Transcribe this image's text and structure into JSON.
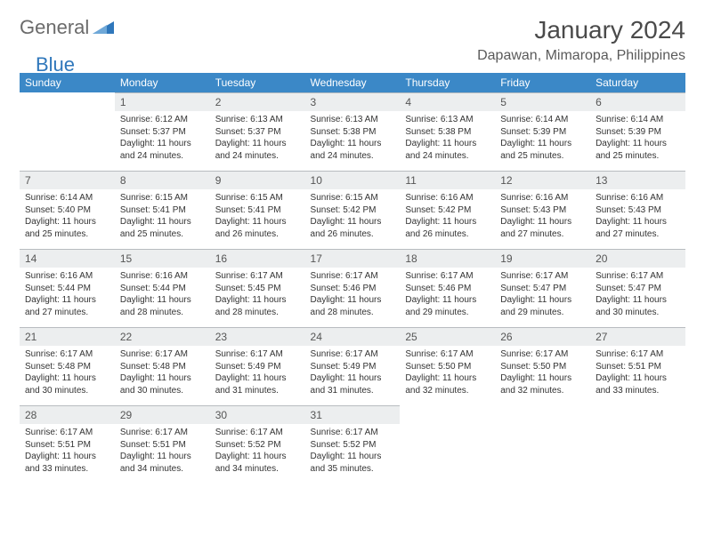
{
  "brand": {
    "part1": "General",
    "part2": "Blue"
  },
  "title": "January 2024",
  "location": "Dapawan, Mimaropa, Philippines",
  "colors": {
    "header_bg": "#3b88c7",
    "header_text": "#ffffff",
    "daynum_bg": "#eceeef",
    "daynum_border": "#b8bcc0",
    "body_text": "#333333",
    "logo_gray": "#6b6b6b",
    "logo_blue": "#2f77bb"
  },
  "day_headers": [
    "Sunday",
    "Monday",
    "Tuesday",
    "Wednesday",
    "Thursday",
    "Friday",
    "Saturday"
  ],
  "weeks": [
    [
      {
        "n": "",
        "sunrise": "",
        "sunset": "",
        "daylight": ""
      },
      {
        "n": "1",
        "sunrise": "Sunrise: 6:12 AM",
        "sunset": "Sunset: 5:37 PM",
        "daylight": "Daylight: 11 hours and 24 minutes."
      },
      {
        "n": "2",
        "sunrise": "Sunrise: 6:13 AM",
        "sunset": "Sunset: 5:37 PM",
        "daylight": "Daylight: 11 hours and 24 minutes."
      },
      {
        "n": "3",
        "sunrise": "Sunrise: 6:13 AM",
        "sunset": "Sunset: 5:38 PM",
        "daylight": "Daylight: 11 hours and 24 minutes."
      },
      {
        "n": "4",
        "sunrise": "Sunrise: 6:13 AM",
        "sunset": "Sunset: 5:38 PM",
        "daylight": "Daylight: 11 hours and 24 minutes."
      },
      {
        "n": "5",
        "sunrise": "Sunrise: 6:14 AM",
        "sunset": "Sunset: 5:39 PM",
        "daylight": "Daylight: 11 hours and 25 minutes."
      },
      {
        "n": "6",
        "sunrise": "Sunrise: 6:14 AM",
        "sunset": "Sunset: 5:39 PM",
        "daylight": "Daylight: 11 hours and 25 minutes."
      }
    ],
    [
      {
        "n": "7",
        "sunrise": "Sunrise: 6:14 AM",
        "sunset": "Sunset: 5:40 PM",
        "daylight": "Daylight: 11 hours and 25 minutes."
      },
      {
        "n": "8",
        "sunrise": "Sunrise: 6:15 AM",
        "sunset": "Sunset: 5:41 PM",
        "daylight": "Daylight: 11 hours and 25 minutes."
      },
      {
        "n": "9",
        "sunrise": "Sunrise: 6:15 AM",
        "sunset": "Sunset: 5:41 PM",
        "daylight": "Daylight: 11 hours and 26 minutes."
      },
      {
        "n": "10",
        "sunrise": "Sunrise: 6:15 AM",
        "sunset": "Sunset: 5:42 PM",
        "daylight": "Daylight: 11 hours and 26 minutes."
      },
      {
        "n": "11",
        "sunrise": "Sunrise: 6:16 AM",
        "sunset": "Sunset: 5:42 PM",
        "daylight": "Daylight: 11 hours and 26 minutes."
      },
      {
        "n": "12",
        "sunrise": "Sunrise: 6:16 AM",
        "sunset": "Sunset: 5:43 PM",
        "daylight": "Daylight: 11 hours and 27 minutes."
      },
      {
        "n": "13",
        "sunrise": "Sunrise: 6:16 AM",
        "sunset": "Sunset: 5:43 PM",
        "daylight": "Daylight: 11 hours and 27 minutes."
      }
    ],
    [
      {
        "n": "14",
        "sunrise": "Sunrise: 6:16 AM",
        "sunset": "Sunset: 5:44 PM",
        "daylight": "Daylight: 11 hours and 27 minutes."
      },
      {
        "n": "15",
        "sunrise": "Sunrise: 6:16 AM",
        "sunset": "Sunset: 5:44 PM",
        "daylight": "Daylight: 11 hours and 28 minutes."
      },
      {
        "n": "16",
        "sunrise": "Sunrise: 6:17 AM",
        "sunset": "Sunset: 5:45 PM",
        "daylight": "Daylight: 11 hours and 28 minutes."
      },
      {
        "n": "17",
        "sunrise": "Sunrise: 6:17 AM",
        "sunset": "Sunset: 5:46 PM",
        "daylight": "Daylight: 11 hours and 28 minutes."
      },
      {
        "n": "18",
        "sunrise": "Sunrise: 6:17 AM",
        "sunset": "Sunset: 5:46 PM",
        "daylight": "Daylight: 11 hours and 29 minutes."
      },
      {
        "n": "19",
        "sunrise": "Sunrise: 6:17 AM",
        "sunset": "Sunset: 5:47 PM",
        "daylight": "Daylight: 11 hours and 29 minutes."
      },
      {
        "n": "20",
        "sunrise": "Sunrise: 6:17 AM",
        "sunset": "Sunset: 5:47 PM",
        "daylight": "Daylight: 11 hours and 30 minutes."
      }
    ],
    [
      {
        "n": "21",
        "sunrise": "Sunrise: 6:17 AM",
        "sunset": "Sunset: 5:48 PM",
        "daylight": "Daylight: 11 hours and 30 minutes."
      },
      {
        "n": "22",
        "sunrise": "Sunrise: 6:17 AM",
        "sunset": "Sunset: 5:48 PM",
        "daylight": "Daylight: 11 hours and 30 minutes."
      },
      {
        "n": "23",
        "sunrise": "Sunrise: 6:17 AM",
        "sunset": "Sunset: 5:49 PM",
        "daylight": "Daylight: 11 hours and 31 minutes."
      },
      {
        "n": "24",
        "sunrise": "Sunrise: 6:17 AM",
        "sunset": "Sunset: 5:49 PM",
        "daylight": "Daylight: 11 hours and 31 minutes."
      },
      {
        "n": "25",
        "sunrise": "Sunrise: 6:17 AM",
        "sunset": "Sunset: 5:50 PM",
        "daylight": "Daylight: 11 hours and 32 minutes."
      },
      {
        "n": "26",
        "sunrise": "Sunrise: 6:17 AM",
        "sunset": "Sunset: 5:50 PM",
        "daylight": "Daylight: 11 hours and 32 minutes."
      },
      {
        "n": "27",
        "sunrise": "Sunrise: 6:17 AM",
        "sunset": "Sunset: 5:51 PM",
        "daylight": "Daylight: 11 hours and 33 minutes."
      }
    ],
    [
      {
        "n": "28",
        "sunrise": "Sunrise: 6:17 AM",
        "sunset": "Sunset: 5:51 PM",
        "daylight": "Daylight: 11 hours and 33 minutes."
      },
      {
        "n": "29",
        "sunrise": "Sunrise: 6:17 AM",
        "sunset": "Sunset: 5:51 PM",
        "daylight": "Daylight: 11 hours and 34 minutes."
      },
      {
        "n": "30",
        "sunrise": "Sunrise: 6:17 AM",
        "sunset": "Sunset: 5:52 PM",
        "daylight": "Daylight: 11 hours and 34 minutes."
      },
      {
        "n": "31",
        "sunrise": "Sunrise: 6:17 AM",
        "sunset": "Sunset: 5:52 PM",
        "daylight": "Daylight: 11 hours and 35 minutes."
      },
      {
        "n": "",
        "sunrise": "",
        "sunset": "",
        "daylight": ""
      },
      {
        "n": "",
        "sunrise": "",
        "sunset": "",
        "daylight": ""
      },
      {
        "n": "",
        "sunrise": "",
        "sunset": "",
        "daylight": ""
      }
    ]
  ]
}
